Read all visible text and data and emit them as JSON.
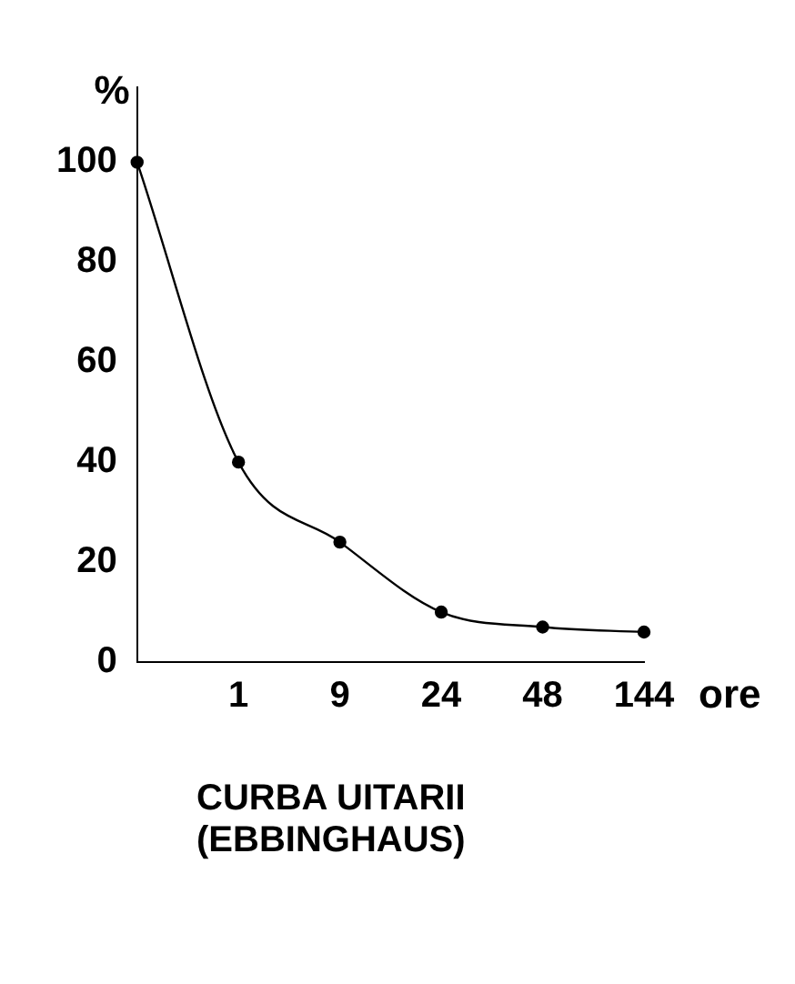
{
  "chart_data": {
    "type": "line",
    "title": "CURBA UITARII\n(EBBINGHAUS)",
    "xlabel": "ore",
    "ylabel": "%",
    "categories": [
      null,
      "1",
      "9",
      "24",
      "48",
      "144"
    ],
    "series": [
      {
        "color": "#000000",
        "values": [
          100,
          40,
          24,
          10,
          7,
          6
        ]
      }
    ],
    "ylim": [
      0,
      115
    ],
    "yticks": [
      0,
      20,
      40,
      60,
      80,
      100
    ],
    "grid": false,
    "legend": false,
    "marker": "circle",
    "line_style": "solid"
  }
}
